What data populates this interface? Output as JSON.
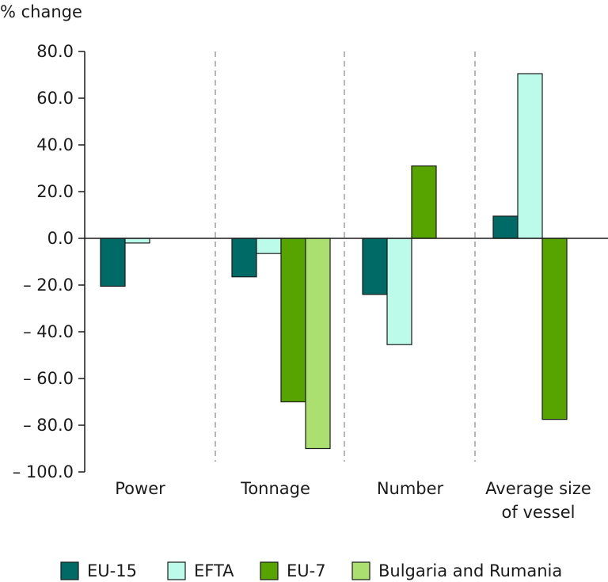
{
  "chart_data": {
    "type": "bar",
    "ylabel": "% change",
    "ylim": [
      -100,
      80
    ],
    "yticks": [
      "80.0",
      "60.0",
      "40.0",
      "20.0",
      "0.0",
      "– 20.0",
      "– 40.0",
      "– 60.0",
      "– 80.0",
      "– 100.0"
    ],
    "ytick_values": [
      80,
      60,
      40,
      20,
      0,
      -20,
      -40,
      -60,
      -80,
      -100
    ],
    "categories": [
      "Power",
      "Tonnage",
      "Number",
      "Average size of vessel"
    ],
    "category_lines": [
      [
        "Power"
      ],
      [
        "Tonnage"
      ],
      [
        "Number"
      ],
      [
        "Average size",
        "of vessel"
      ]
    ],
    "series": [
      {
        "name": "EU-15",
        "color": "#006a66",
        "values": [
          -20.5,
          -16.5,
          -24.0,
          9.5
        ]
      },
      {
        "name": "EFTA",
        "color": "#bcfbe9",
        "values": [
          -2.0,
          -6.5,
          -45.5,
          70.5
        ]
      },
      {
        "name": "EU-7",
        "color": "#57a300",
        "values": [
          null,
          -70.0,
          31.0,
          -77.5
        ]
      },
      {
        "name": "Bulgaria and Rumania",
        "color": "#abe071",
        "values": [
          null,
          -90.0,
          null,
          null
        ]
      }
    ],
    "grid": false,
    "legend_position": "bottom"
  }
}
